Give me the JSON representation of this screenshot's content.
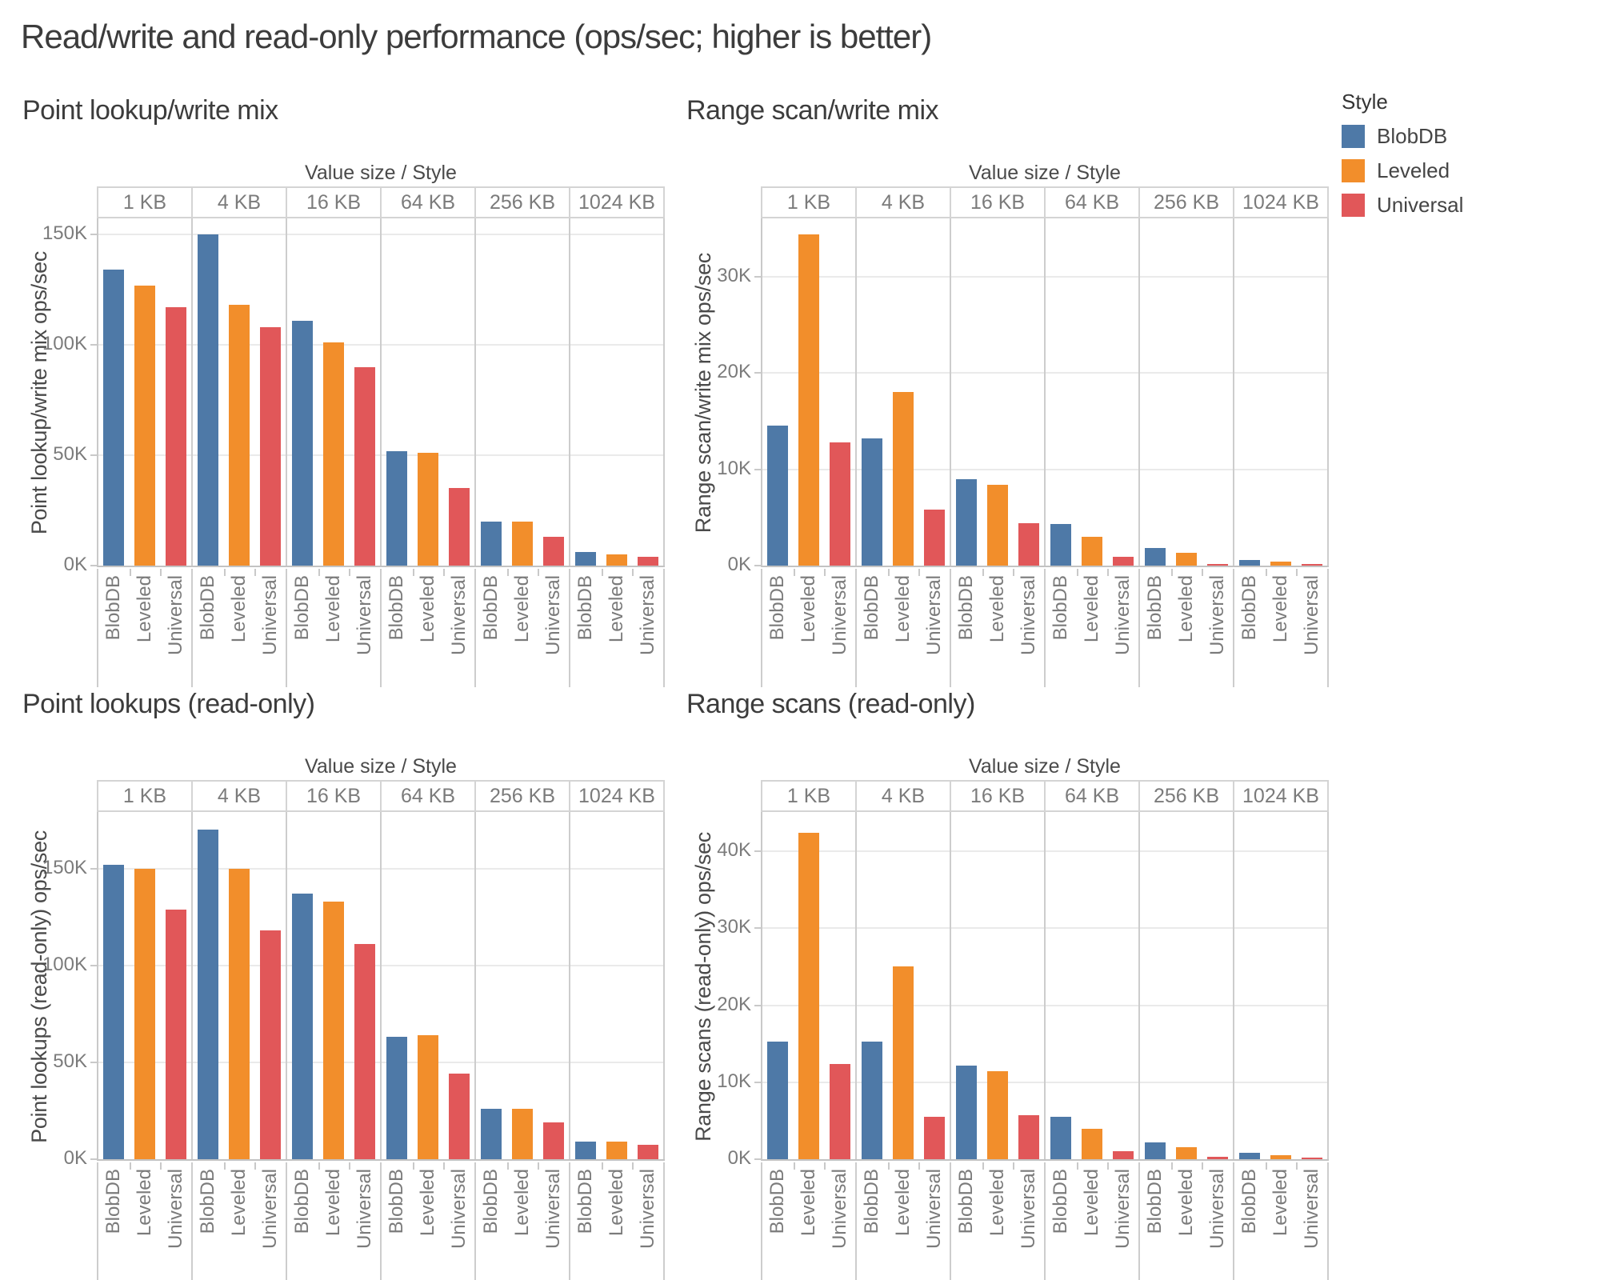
{
  "page_title": "Read/write and read-only performance (ops/sec; higher is better)",
  "column_header": "Value size  /  Style",
  "categories": [
    "1 KB",
    "4 KB",
    "16 KB",
    "64 KB",
    "256 KB",
    "1024 KB"
  ],
  "styles": [
    "BlobDB",
    "Leveled",
    "Universal"
  ],
  "legend": {
    "title": "Style",
    "items": [
      {
        "label": "BlobDB",
        "color": "#4e79a7"
      },
      {
        "label": "Leveled",
        "color": "#f28e2b"
      },
      {
        "label": "Universal",
        "color": "#e15759"
      }
    ]
  },
  "chart_data": [
    {
      "type": "bar",
      "title": "Point lookup/write mix",
      "ylabel": "Point lookup/write mix ops/sec",
      "categories": [
        "1 KB",
        "4 KB",
        "16 KB",
        "64 KB",
        "256 KB",
        "1024 KB"
      ],
      "yticks": [
        "0K",
        "50K",
        "100K",
        "150K"
      ],
      "ytick_values": [
        0,
        50000,
        100000,
        150000
      ],
      "ylim": [
        0,
        158000
      ],
      "grid": true,
      "series": [
        {
          "name": "BlobDB",
          "color": "#4e79a7",
          "values": [
            134000,
            150000,
            111000,
            52000,
            20000,
            6000
          ]
        },
        {
          "name": "Leveled",
          "color": "#f28e2b",
          "values": [
            127000,
            118000,
            101000,
            51000,
            20000,
            5000
          ]
        },
        {
          "name": "Universal",
          "color": "#e15759",
          "values": [
            117000,
            108000,
            90000,
            35000,
            13000,
            4000
          ]
        }
      ]
    },
    {
      "type": "bar",
      "title": "Range scan/write mix",
      "ylabel": "Range scan/write mix ops/sec",
      "categories": [
        "1 KB",
        "4 KB",
        "16 KB",
        "64 KB",
        "256 KB",
        "1024 KB"
      ],
      "yticks": [
        "0K",
        "10K",
        "20K",
        "30K"
      ],
      "ytick_values": [
        0,
        10000,
        20000,
        30000
      ],
      "ylim": [
        0,
        36200
      ],
      "grid": true,
      "series": [
        {
          "name": "BlobDB",
          "color": "#4e79a7",
          "values": [
            14500,
            13200,
            9000,
            4300,
            1800,
            600
          ]
        },
        {
          "name": "Leveled",
          "color": "#f28e2b",
          "values": [
            34400,
            18000,
            8400,
            3000,
            1300,
            450
          ]
        },
        {
          "name": "Universal",
          "color": "#e15759",
          "values": [
            12800,
            5800,
            4400,
            950,
            200,
            100
          ]
        }
      ]
    },
    {
      "type": "bar",
      "title": "Point lookups (read-only)",
      "ylabel": "Point lookups (read-only) ops/sec",
      "categories": [
        "1 KB",
        "4 KB",
        "16 KB",
        "64 KB",
        "256 KB",
        "1024 KB"
      ],
      "yticks": [
        "0K",
        "50K",
        "100K",
        "150K"
      ],
      "ytick_values": [
        0,
        50000,
        100000,
        150000
      ],
      "ylim": [
        0,
        180000
      ],
      "grid": true,
      "series": [
        {
          "name": "BlobDB",
          "color": "#4e79a7",
          "values": [
            152000,
            170000,
            137000,
            63000,
            26000,
            9000
          ]
        },
        {
          "name": "Leveled",
          "color": "#f28e2b",
          "values": [
            150000,
            150000,
            133000,
            64000,
            26000,
            9000
          ]
        },
        {
          "name": "Universal",
          "color": "#e15759",
          "values": [
            129000,
            118000,
            111000,
            44000,
            19000,
            7500
          ]
        }
      ]
    },
    {
      "type": "bar",
      "title": "Range scans (read-only)",
      "ylabel": "Range scans (read-only) ops/sec",
      "categories": [
        "1 KB",
        "4 KB",
        "16 KB",
        "64 KB",
        "256 KB",
        "1024 KB"
      ],
      "yticks": [
        "0K",
        "10K",
        "20K",
        "30K",
        "40K"
      ],
      "ytick_values": [
        0,
        10000,
        20000,
        30000,
        40000
      ],
      "ylim": [
        0,
        45300
      ],
      "grid": true,
      "series": [
        {
          "name": "BlobDB",
          "color": "#4e79a7",
          "values": [
            15300,
            15300,
            12200,
            5500,
            2200,
            800
          ]
        },
        {
          "name": "Leveled",
          "color": "#f28e2b",
          "values": [
            42400,
            25000,
            11400,
            4000,
            1600,
            500
          ]
        },
        {
          "name": "Universal",
          "color": "#e15759",
          "values": [
            12400,
            5500,
            5700,
            1000,
            300,
            250
          ]
        }
      ]
    }
  ]
}
